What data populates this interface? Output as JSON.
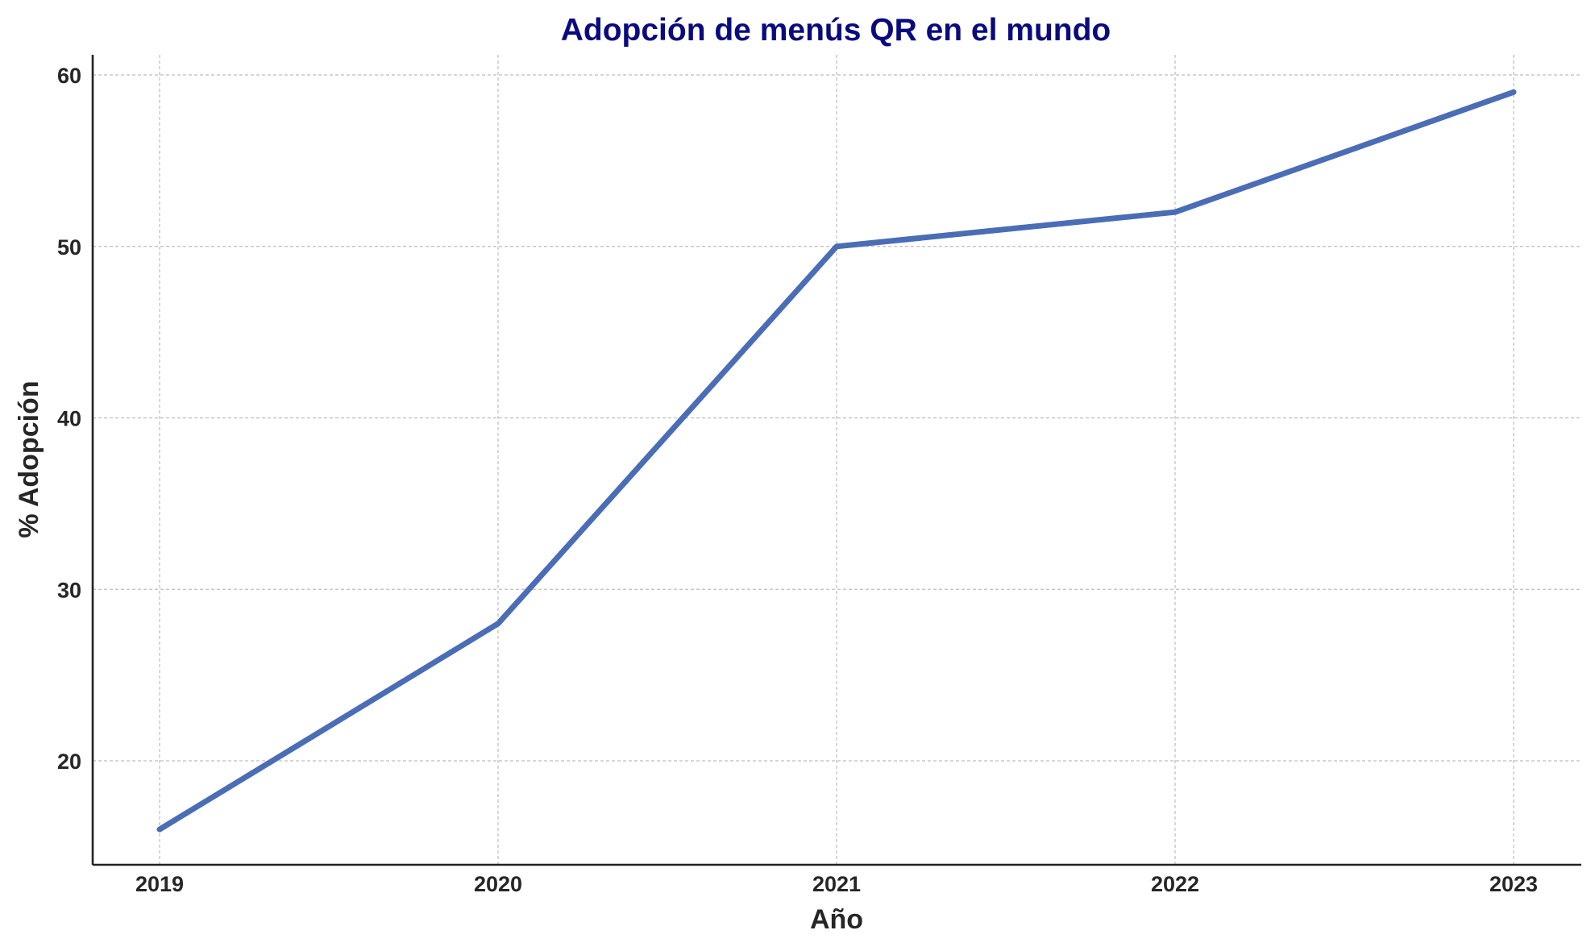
{
  "chart_data": {
    "type": "line",
    "title": "Adopción de menús QR en el mundo",
    "xlabel": "Año",
    "ylabel": "% Adopción",
    "x": [
      "2019",
      "2020",
      "2021",
      "2022",
      "2023"
    ],
    "series": [
      {
        "values": [
          16,
          28,
          50,
          52,
          59
        ]
      }
    ],
    "ylim": [
      14,
      61.1
    ],
    "yticks": [
      20,
      30,
      40,
      50,
      60
    ],
    "grid": true,
    "colors": {
      "line": "#4a6db5",
      "title": "#0a0a7e"
    }
  }
}
